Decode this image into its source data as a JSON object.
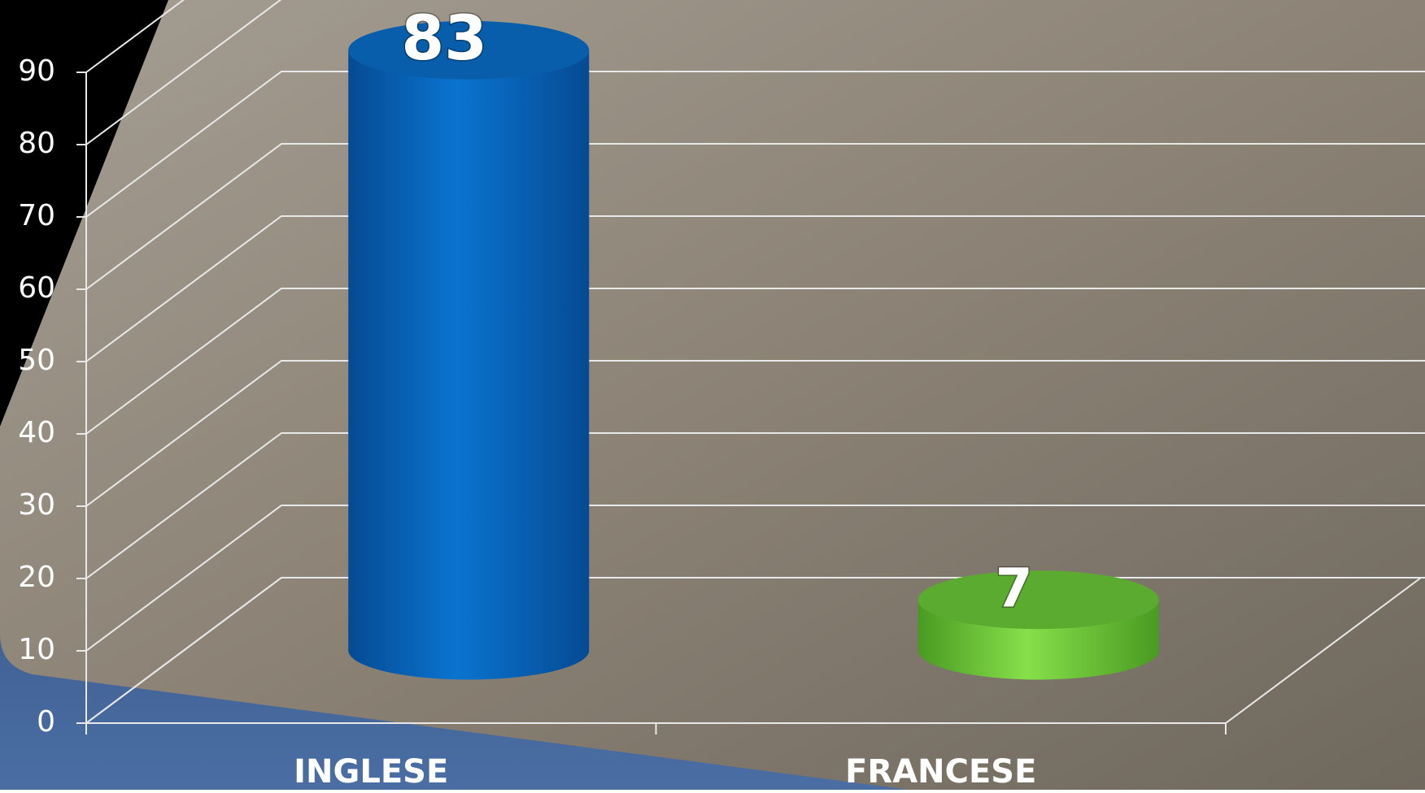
{
  "chart_data": {
    "type": "bar3d",
    "categories": [
      "INGLESE",
      "FRANCESE"
    ],
    "series": [
      {
        "name": null,
        "colors": [
          "#0a6fc9",
          "#6cc93a"
        ],
        "values": [
          83,
          7
        ]
      }
    ],
    "ylim": [
      0,
      90
    ],
    "yticks": [
      0,
      10,
      20,
      30,
      40,
      50,
      60,
      70,
      80,
      90
    ],
    "grid": true
  }
}
